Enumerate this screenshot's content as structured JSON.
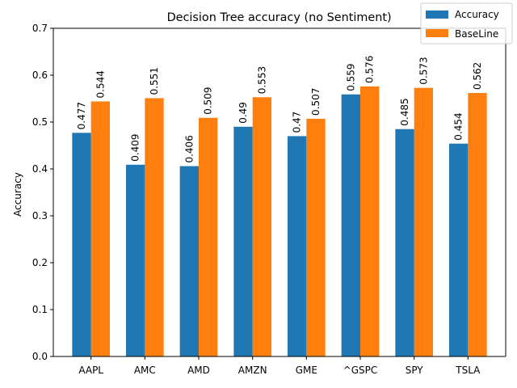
{
  "chart_data": {
    "type": "bar",
    "title": "Decision Tree accuracy (no Sentiment)",
    "xlabel": "",
    "ylabel": "Accuracy",
    "ylim": [
      0,
      0.7
    ],
    "yticks": [
      "0.0",
      "0.1",
      "0.2",
      "0.3",
      "0.4",
      "0.5",
      "0.6",
      "0.7"
    ],
    "categories": [
      "AAPL",
      "AMC",
      "AMD",
      "AMZN",
      "GME",
      "^GSPC",
      "SPY",
      "TSLA"
    ],
    "series": [
      {
        "name": "Accuracy",
        "color": "#1f77b4",
        "values": [
          0.477,
          0.409,
          0.406,
          0.49,
          0.47,
          0.559,
          0.485,
          0.454
        ],
        "labels": [
          "0.477",
          "0.409",
          "0.406",
          "0.49",
          "0.47",
          "0.559",
          "0.485",
          "0.454"
        ]
      },
      {
        "name": "BaseLine",
        "color": "#ff7f0e",
        "values": [
          0.544,
          0.551,
          0.509,
          0.553,
          0.507,
          0.576,
          0.573,
          0.562
        ],
        "labels": [
          "0.544",
          "0.551",
          "0.509",
          "0.553",
          "0.507",
          "0.576",
          "0.573",
          "0.562"
        ]
      }
    ],
    "grid": false,
    "legend_position": "top-right"
  }
}
